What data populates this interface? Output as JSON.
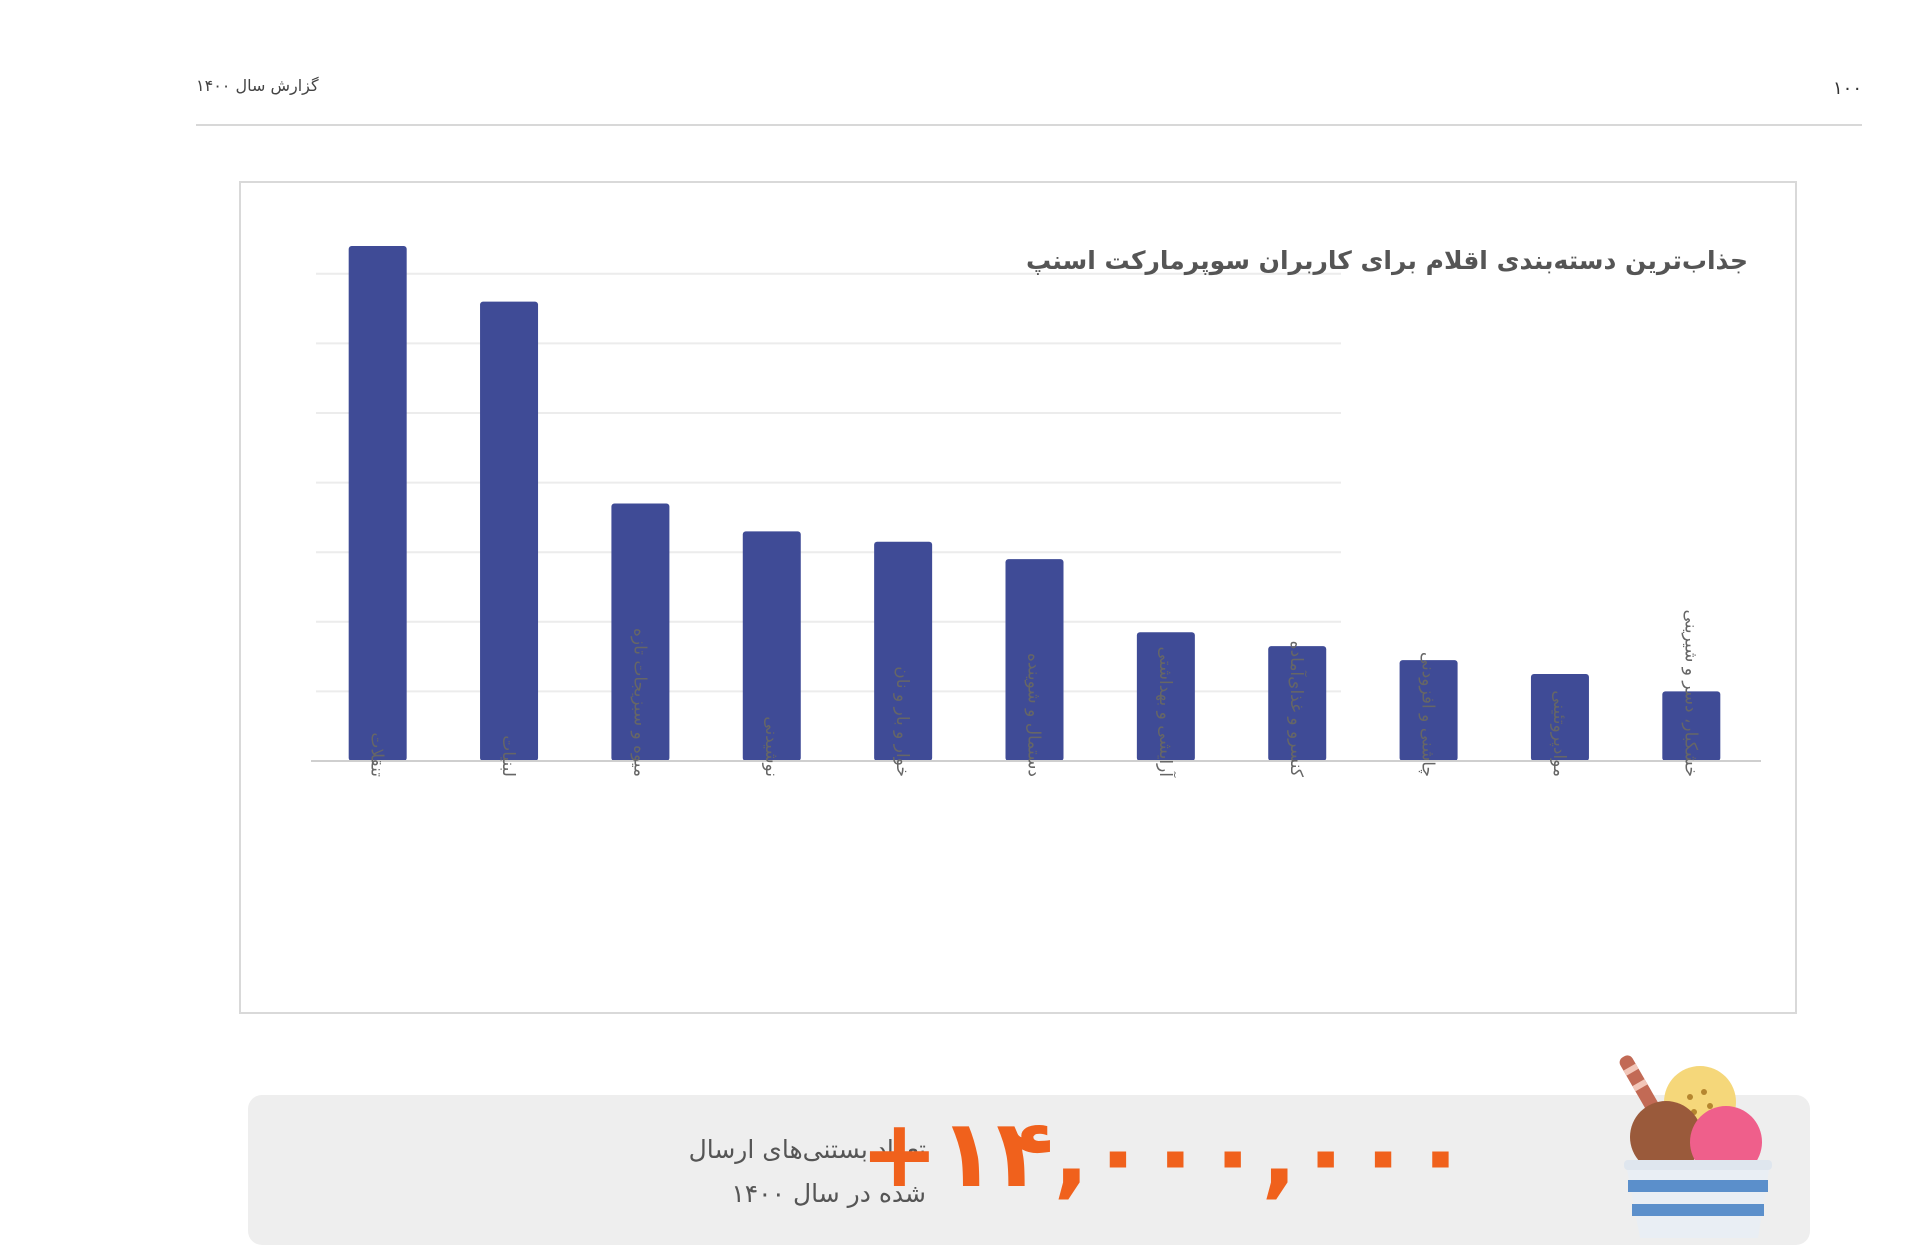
{
  "header": {
    "report_label": "گزارش سال ۱۴۰۰",
    "page_number": "۱۰۰"
  },
  "chart_data": {
    "type": "bar",
    "title": "جذاب‌ترین دسته‌بندی اقلام برای کاربران سوپرمارکت اسنپ",
    "categories": [
      "تنقلات",
      "لبنیات",
      "میوه و سبزیجات تازه",
      "نوشیدنی",
      "خوار و بار و نان",
      "دستمال و شوینده",
      "آرایشی و بهداشتی",
      "کنسرو و غذای‌آماده",
      "چاشنی و افزودنی",
      "موادپروتئینی",
      "خشکبار، دسر و شیرینی"
    ],
    "values": [
      7.4,
      6.6,
      3.7,
      3.3,
      3.15,
      2.9,
      1.85,
      1.65,
      1.45,
      1.25,
      1.0
    ],
    "ylim": [
      0,
      7.5
    ],
    "grid": true,
    "bar_color": "#3f4b96",
    "xlabel": "",
    "ylabel": ""
  },
  "banner": {
    "line1": "تعداد بستنی‌های ارسال",
    "line2": "شده در سال ۱۴۰۰",
    "number": "+۱۴,۰۰۰,۰۰۰",
    "number_color": "#f0611c",
    "icon": "ice-cream-icon"
  }
}
